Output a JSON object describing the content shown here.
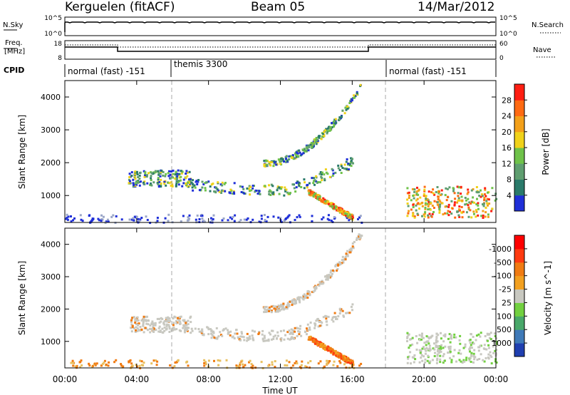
{
  "header": {
    "station": "Kerguelen (fitACF)",
    "beam": "Beam 05",
    "date": "14/Mar/2012"
  },
  "top_panels": {
    "nsky_label": "N.Sky",
    "nsky_ticks": [
      "10^5",
      "10^0"
    ],
    "nsearch_label": "N.Search",
    "nsearch_ticks": [
      "10^5",
      "10^0"
    ],
    "freq_label_1": "Freq.",
    "freq_label_2": "[MHz]",
    "freq_ticks": [
      "18",
      "8"
    ],
    "nave_label": "Nave",
    "nave_ticks": [
      "60",
      "0"
    ],
    "cpid_label": "CPID",
    "cpid_segments": [
      {
        "label": "normal (fast) -151",
        "start_hour": 0,
        "end_hour": 6
      },
      {
        "label": "themis 3300",
        "start_hour": 6,
        "end_hour": 18
      },
      {
        "label": "normal (fast) -151",
        "start_hour": 18,
        "end_hour": 24
      }
    ]
  },
  "chart_data": [
    {
      "type": "heatmap",
      "panel": "power",
      "ylabel": "Slant Range [km]",
      "ylim": [
        180,
        4500
      ],
      "yticks": [
        "1000",
        "2000",
        "3000",
        "4000"
      ],
      "colorbar_label": "Power [dB]",
      "colorbar_ticks": [
        "4",
        "8",
        "12",
        "16",
        "20",
        "24",
        "28"
      ],
      "colorbar_colors": [
        "#1f2fd8",
        "#2a7a6a",
        "#5f9e70",
        "#6fc24a",
        "#f0d21a",
        "#f3a01a",
        "#ff6a12",
        "#ff1e12"
      ],
      "features": [
        {
          "name": "ground scatter",
          "x": [
            0.0,
            16.5
          ],
          "y": [
            200,
            450
          ]
        },
        {
          "name": "echo band",
          "x": [
            3.5,
            7.0
          ],
          "y": [
            1300,
            1800
          ]
        },
        {
          "name": "echo band",
          "x": [
            7.0,
            16.0
          ],
          "y": [
            1100,
            2100
          ]
        },
        {
          "name": "upper band",
          "x": [
            11.0,
            16.5
          ],
          "y": [
            2000,
            4500
          ]
        },
        {
          "name": "descending branch",
          "x": [
            13.5,
            16.0
          ],
          "y": [
            300,
            1200
          ]
        },
        {
          "name": "late patch",
          "x": [
            19.0,
            24.0
          ],
          "y": [
            350,
            1300
          ]
        }
      ]
    },
    {
      "type": "heatmap",
      "panel": "velocity",
      "ylabel": "Slant Range [km]",
      "ylim": [
        180,
        4500
      ],
      "yticks": [
        "1000",
        "2000",
        "3000",
        "4000"
      ],
      "colorbar_label": "Velocity [m s^-1]",
      "colorbar_ticks": [
        "1000",
        "500",
        "100",
        "25",
        "-25",
        "-100",
        "-500",
        "-1000"
      ],
      "colorbar_colors": [
        "#1f3fb0",
        "#3f7ab8",
        "#49a86a",
        "#72d040",
        "#c8c8c0",
        "#f2a020",
        "#f07b12",
        "#ff3a10",
        "#ff0000"
      ],
      "xlabel": "Time UT",
      "xticks": [
        "00:00",
        "04:00",
        "08:00",
        "12:00",
        "16:00",
        "20:00",
        "00:00"
      ],
      "xlim": [
        0,
        24
      ]
    }
  ]
}
